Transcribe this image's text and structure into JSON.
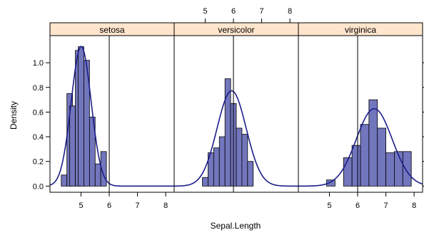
{
  "chart_data": {
    "type": "bar",
    "xlabel": "Sepal.Length",
    "ylabel": "Density",
    "xlim": [
      3.9,
      8.3
    ],
    "ylim": [
      -0.05,
      1.22
    ],
    "x_ticks": [
      5,
      6,
      7,
      8
    ],
    "x_tick_labels": [
      "5",
      "6",
      "7",
      "8"
    ],
    "y_ticks": [
      0.0,
      0.2,
      0.4,
      0.6,
      0.8,
      1.0
    ],
    "y_tick_labels": [
      "0.0",
      "0.2",
      "0.4",
      "0.6",
      "0.8",
      "1.0"
    ],
    "reference_line_x": 6,
    "grid": false,
    "layout": "three panels side by side",
    "colors": {
      "bar_fill": "#7276bd",
      "density_line": "#1c1c8a",
      "strip_fill": "#ffe5cc",
      "reference_line": "#000000"
    },
    "panels": [
      {
        "strip_label": "setosa",
        "bin_width": 0.2,
        "bins": [
          {
            "x": 4.3,
            "density": 0.09
          },
          {
            "x": 4.5,
            "density": 0.75
          },
          {
            "x": 4.6,
            "density": 0.65
          },
          {
            "x": 4.8,
            "density": 1.1
          },
          {
            "x": 4.9,
            "density": 1.13
          },
          {
            "x": 5.1,
            "density": 1.02
          },
          {
            "x": 5.3,
            "density": 0.56
          },
          {
            "x": 5.5,
            "density": 0.18
          },
          {
            "x": 5.7,
            "density": 0.28
          }
        ],
        "density_curve": {
          "mean": 5.006,
          "sd": 0.352
        }
      },
      {
        "strip_label": "versicolor",
        "bin_width": 0.2,
        "bins": [
          {
            "x": 4.9,
            "density": 0.07
          },
          {
            "x": 5.1,
            "density": 0.27
          },
          {
            "x": 5.3,
            "density": 0.31
          },
          {
            "x": 5.5,
            "density": 0.4
          },
          {
            "x": 5.7,
            "density": 0.87
          },
          {
            "x": 5.9,
            "density": 0.67
          },
          {
            "x": 6.1,
            "density": 0.47
          },
          {
            "x": 6.3,
            "density": 0.42
          },
          {
            "x": 6.5,
            "density": 0.2
          }
        ],
        "density_curve": {
          "mean": 5.936,
          "sd": 0.516
        }
      },
      {
        "strip_label": "virginica",
        "bin_width": 0.3,
        "bins": [
          {
            "x": 4.9,
            "density": 0.05
          },
          {
            "x": 5.5,
            "density": 0.23
          },
          {
            "x": 5.8,
            "density": 0.33
          },
          {
            "x": 6.1,
            "density": 0.5
          },
          {
            "x": 6.4,
            "density": 0.7
          },
          {
            "x": 6.7,
            "density": 0.47
          },
          {
            "x": 7.0,
            "density": 0.27
          },
          {
            "x": 7.3,
            "density": 0.28
          },
          {
            "x": 7.6,
            "density": 0.28
          }
        ],
        "density_curve": {
          "mean": 6.588,
          "sd": 0.636
        }
      }
    ]
  }
}
